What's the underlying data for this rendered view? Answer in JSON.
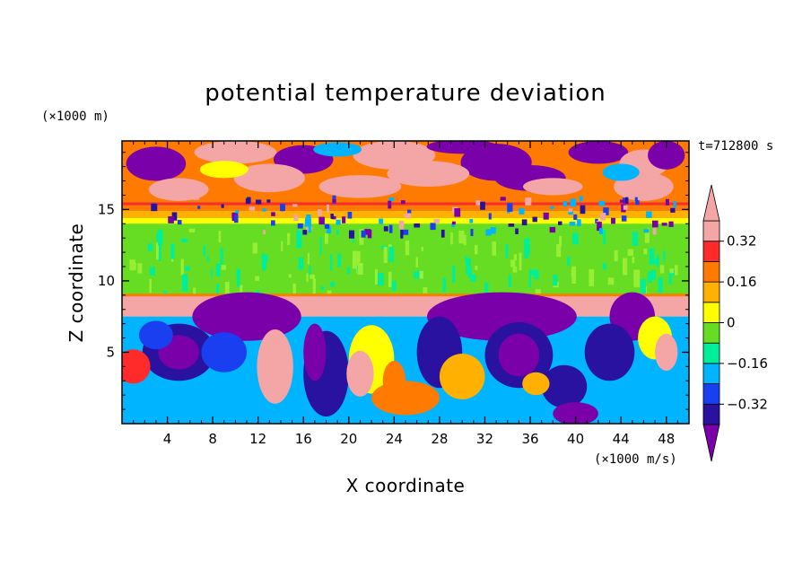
{
  "chart_data": {
    "type": "heatmap",
    "title": "potential temperature deviation",
    "xlabel": "X coordinate",
    "ylabel": "Z coordinate",
    "x_unit": "(×1000 m/s)",
    "y_unit": "(×1000 m)",
    "time_label": "t=712800 s",
    "xlim": [
      0,
      50
    ],
    "ylim": [
      0,
      19.8
    ],
    "x_ticks": [
      4,
      8,
      12,
      16,
      20,
      24,
      28,
      32,
      36,
      40,
      44,
      48
    ],
    "y_ticks": [
      5,
      10,
      15
    ],
    "colorbar": {
      "levels": [
        -0.4,
        -0.32,
        -0.24,
        -0.16,
        -0.08,
        0,
        0.08,
        0.16,
        0.24,
        0.32,
        0.4
      ],
      "labels": [
        "0.32",
        "0.16",
        "0",
        "−0.16",
        "−0.32"
      ],
      "label_values": [
        0.32,
        0.16,
        0,
        -0.16,
        -0.32
      ],
      "colors_low_to_high": [
        "#7a00aa",
        "#2a12a0",
        "#1a3ff0",
        "#00b4ff",
        "#00ee99",
        "#66dd22",
        "#ffff00",
        "#ffb000",
        "#ff7a00",
        "#ff2a2a",
        "#f4a6a6"
      ]
    },
    "bands": [
      {
        "z": [
          0,
          7.5
        ],
        "pattern": "large rotating cold/warm eddies",
        "dominant": "mixed"
      },
      {
        "z": [
          7.5,
          9
        ],
        "pattern": "warm layer with cold domes",
        "dominant": "#f4a6a6"
      },
      {
        "z": [
          9,
          14
        ],
        "pattern": "near-neutral layer",
        "dominant": "#66dd22"
      },
      {
        "z": [
          14,
          15.2
        ],
        "pattern": "warm stratified band",
        "dominant": "#ff7a00"
      },
      {
        "z": [
          15.2,
          19.8
        ],
        "pattern": "alternating warm/cold patches",
        "dominant": "#7a00aa"
      }
    ]
  },
  "colors": {
    "purple": "#7a00aa",
    "navy": "#2a12a0",
    "blue": "#1a3ff0",
    "cyan": "#00b4ff",
    "teal": "#00ee99",
    "green": "#66dd22",
    "yellow": "#ffff00",
    "orange_light": "#ffb000",
    "orange": "#ff7a00",
    "red": "#ff2a2a",
    "pink": "#f4a6a6"
  }
}
